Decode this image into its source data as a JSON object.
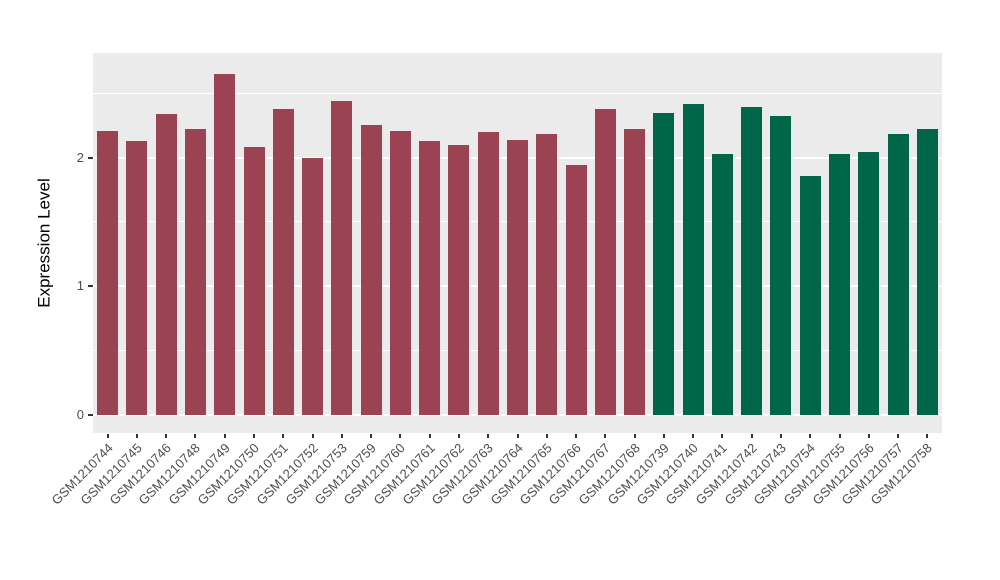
{
  "chart_data": {
    "type": "bar",
    "title": "",
    "xlabel": "",
    "ylabel": "Expression Level",
    "ylim": [
      0,
      2.81
    ],
    "yticks_major": [
      0,
      1,
      2
    ],
    "yticks_minor": [
      0.5,
      1.5,
      2.5
    ],
    "grid": true,
    "legend_position": "none",
    "panel_background": "#EBEBEB",
    "gridline_color": "#FFFFFF",
    "tick_label_color": "#4D4D4D",
    "axis_title_color": "#000000",
    "group_colors": {
      "maroon": "#9B4253",
      "green": "#006647"
    },
    "categories": [
      "GSM1210744",
      "GSM1210745",
      "GSM1210746",
      "GSM1210748",
      "GSM1210749",
      "GSM1210750",
      "GSM1210751",
      "GSM1210752",
      "GSM1210753",
      "GSM1210759",
      "GSM1210760",
      "GSM1210761",
      "GSM1210762",
      "GSM1210763",
      "GSM1210764",
      "GSM1210765",
      "GSM1210766",
      "GSM1210767",
      "GSM1210768",
      "GSM1210739",
      "GSM1210740",
      "GSM1210741",
      "GSM1210742",
      "GSM1210743",
      "GSM1210754",
      "GSM1210755",
      "GSM1210756",
      "GSM1210757",
      "GSM1210758"
    ],
    "values": [
      2.21,
      2.13,
      2.34,
      2.22,
      2.65,
      2.08,
      2.38,
      2.0,
      2.44,
      2.25,
      2.21,
      2.13,
      2.1,
      2.2,
      2.14,
      2.18,
      1.94,
      2.38,
      2.22,
      2.35,
      2.42,
      2.03,
      2.39,
      2.32,
      1.86,
      2.03,
      2.04,
      2.18,
      2.22
    ],
    "groups": [
      "maroon",
      "maroon",
      "maroon",
      "maroon",
      "maroon",
      "maroon",
      "maroon",
      "maroon",
      "maroon",
      "maroon",
      "maroon",
      "maroon",
      "maroon",
      "maroon",
      "maroon",
      "maroon",
      "maroon",
      "maroon",
      "maroon",
      "green",
      "green",
      "green",
      "green",
      "green",
      "green",
      "green",
      "green",
      "green",
      "green"
    ]
  }
}
